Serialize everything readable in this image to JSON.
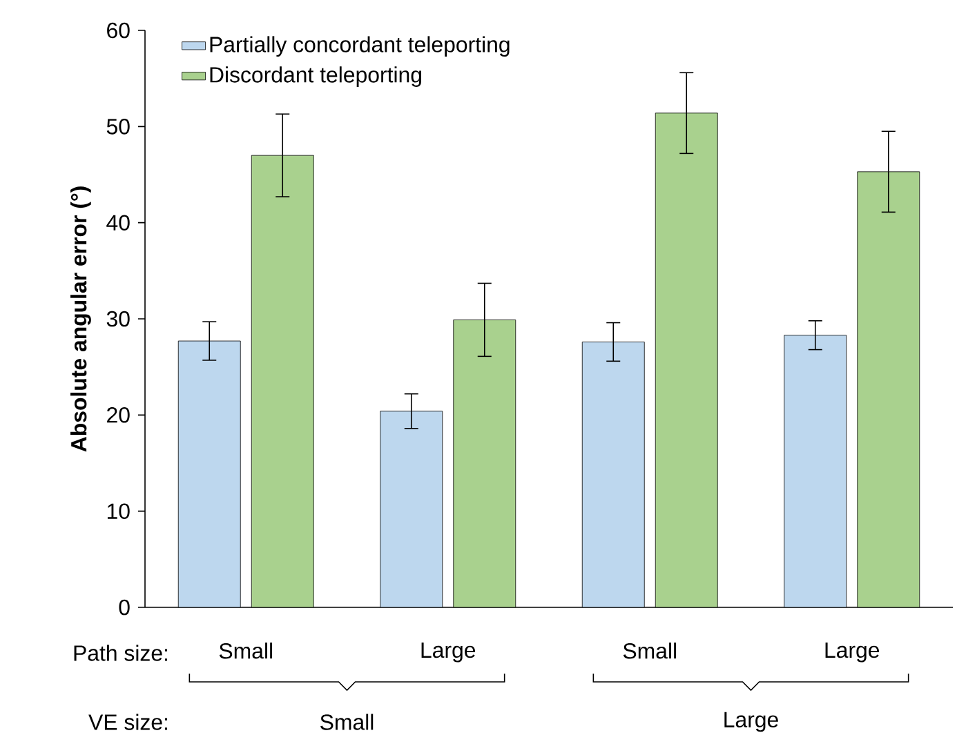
{
  "chart_data": {
    "type": "bar",
    "ylabel": "Absolute angular error (°)",
    "categories": [
      "Small",
      "Large",
      "Small",
      "Large"
    ],
    "series": [
      {
        "name": "Partially concordant teleporting",
        "color": "#bdd7ee",
        "values": [
          27.7,
          20.4,
          27.6,
          28.3
        ],
        "errors": [
          2.0,
          1.8,
          2.0,
          1.5
        ]
      },
      {
        "name": "Discordant teleporting",
        "color": "#a9d18e",
        "values": [
          47.0,
          29.9,
          51.4,
          45.3
        ],
        "errors": [
          4.3,
          3.8,
          4.2,
          4.2
        ]
      }
    ],
    "ylim": [
      0,
      60
    ],
    "yticks": [
      0,
      10,
      20,
      30,
      40,
      50,
      60
    ],
    "legend": "top left",
    "annotations": [
      "Path size:",
      "VE size:",
      "Small",
      "Large"
    ]
  }
}
